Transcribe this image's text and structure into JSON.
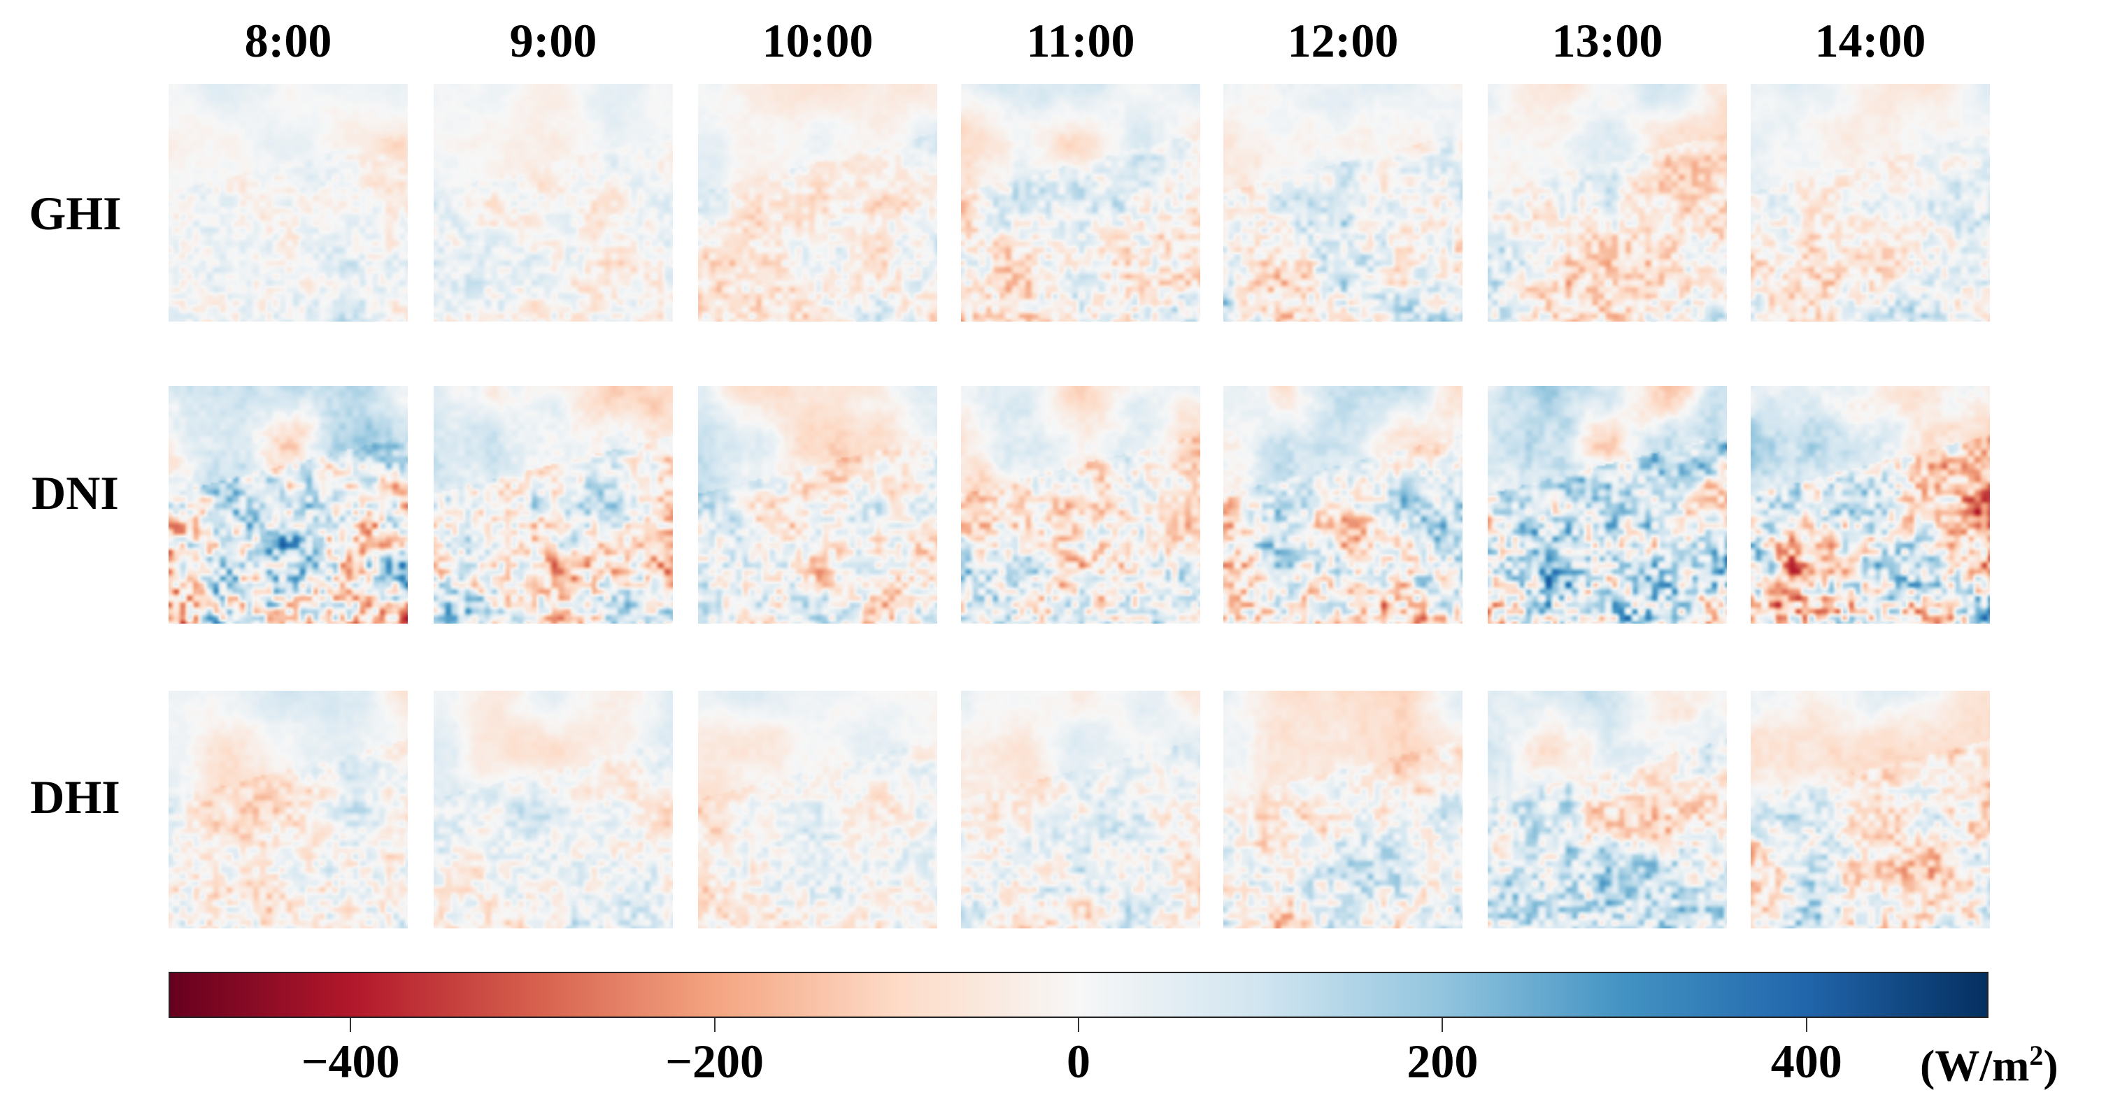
{
  "chart_data": {
    "type": "heatmap",
    "columns": [
      "8:00",
      "9:00",
      "10:00",
      "11:00",
      "12:00",
      "13:00",
      "14:00"
    ],
    "rows": [
      "GHI",
      "DNI",
      "DHI"
    ],
    "colormap": "RdBu",
    "colorbar": {
      "range": [
        -500,
        500
      ],
      "ticks": [
        -400,
        -200,
        0,
        200,
        400
      ],
      "tick_labels": [
        "−400",
        "−200",
        "0",
        "200",
        "400"
      ],
      "unit": "(W/m",
      "unit_superscript": "2",
      "unit_close": ")",
      "colors": [
        "#67001f",
        "#b2182b",
        "#d6604d",
        "#f4a582",
        "#fddbc7",
        "#f7f7f7",
        "#d1e5f0",
        "#92c5de",
        "#4393c3",
        "#2166ac",
        "#053061"
      ]
    }
  }
}
